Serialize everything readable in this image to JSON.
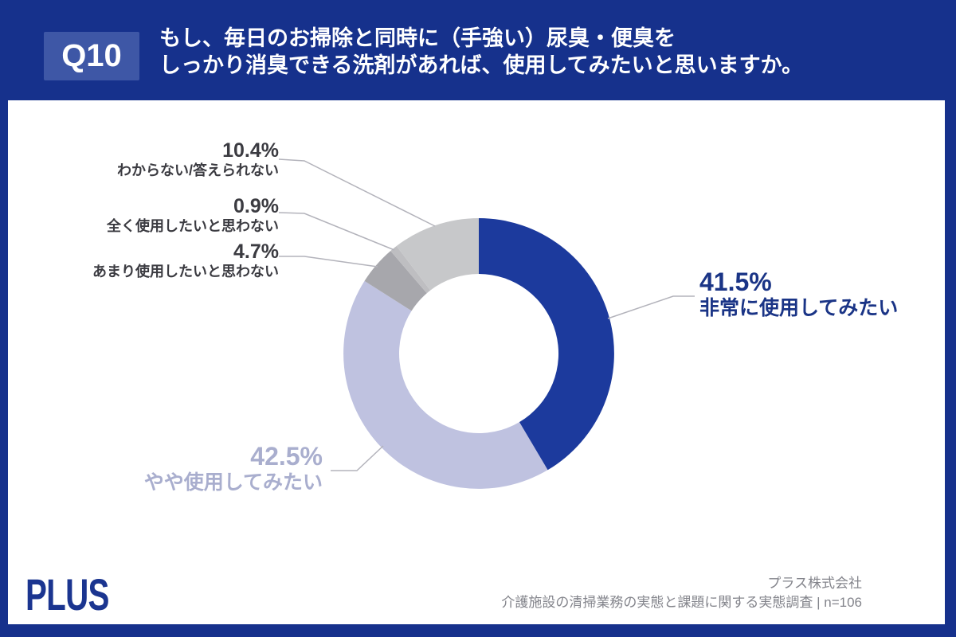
{
  "header": {
    "badge": "Q10",
    "title_line1": "もし、毎日のお掃除と同時に（手強い）尿臭・便臭を",
    "title_line2": "しっかり消臭できる洗剤があれば、使用してみたいと思いますか。"
  },
  "chart_data": {
    "type": "pie",
    "subtype": "donut",
    "direction": "clockwise",
    "start_angle_deg": 0,
    "inner_radius_ratio": 0.59,
    "legend_position": "callout-labels-with-leader-lines",
    "n": 106,
    "segments": [
      {
        "label": "非常に使用してみたい",
        "value": 41.5,
        "percent_text": "41.5%",
        "color": "#1C3A9D",
        "label_color": "#1A3486"
      },
      {
        "label": "やや使用してみたい",
        "value": 42.5,
        "percent_text": "42.5%",
        "color": "#BFC2E0",
        "label_color": "#A9AECE"
      },
      {
        "label": "あまり使用したいと思わない",
        "value": 4.7,
        "percent_text": "4.7%",
        "color": "#A7A7AC",
        "label_color": "#3B3B41"
      },
      {
        "label": "全く使用したいと思わない",
        "value": 0.9,
        "percent_text": "0.9%",
        "color": "#BEBEC1",
        "label_color": "#3B3B41"
      },
      {
        "label": "わからない/答えられない",
        "value": 10.4,
        "percent_text": "10.4%",
        "color": "#C7C8CA",
        "label_color": "#3B3B41"
      }
    ]
  },
  "footer": {
    "logo": "PLUS",
    "company": "プラス株式会社",
    "survey": "介護施設の清掃業務の実態と課題に関する実態調査 | n=106"
  },
  "colors": {
    "page_background": "#16318C",
    "badge_background": "#3E57A6",
    "panel_background": "#FFFFFF",
    "accent_navy": "#1A3486",
    "footer_text": "#83848B",
    "leader_line": "#B3B3BB"
  }
}
